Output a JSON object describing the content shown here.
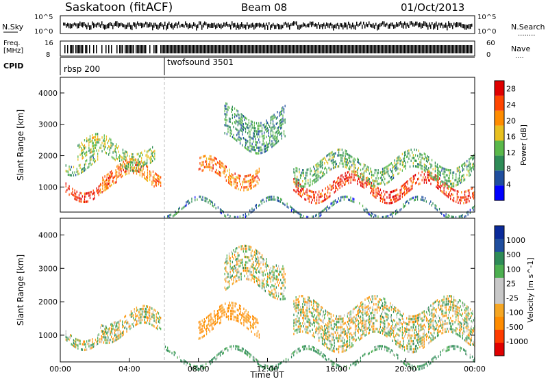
{
  "header": {
    "station": "Saskatoon (fitACF)",
    "beam": "Beam 08",
    "date": "01/Oct/2013"
  },
  "noise_panel": {
    "left_label": "N.Sky",
    "right_label": "N.Search",
    "right_marker": "........",
    "y_ticks": [
      "10^5",
      "10^0"
    ],
    "y_ticks_right": [
      "10^5",
      "10^0"
    ]
  },
  "freq_panel": {
    "left_label_1": "Freq.",
    "left_label_2": "[MHz]",
    "y_ticks": [
      "16",
      "8"
    ],
    "right_label": "Nave",
    "right_marker": "....",
    "y_ticks_right": [
      "60",
      "0"
    ]
  },
  "cpid_panel": {
    "label": "CPID",
    "segments": [
      {
        "name": "rbsp 200",
        "start_ut": 0,
        "end_ut": 6
      },
      {
        "name": "twofsound 3501",
        "start_ut": 6,
        "end_ut": 24
      }
    ]
  },
  "colors": {
    "power_scale": [
      "#0000ff",
      "#1f4e9e",
      "#2e8b57",
      "#5ab84a",
      "#e8c020",
      "#ff8c00",
      "#ff4500",
      "#e00000"
    ],
    "velocity_scale": [
      "#e00000",
      "#ff3c00",
      "#ff8c00",
      "#f5a623",
      "#c8c8c8",
      "#c8c8c8",
      "#4caf50",
      "#2e8b57",
      "#1f4e9e",
      "#0a2a9a"
    ],
    "ground_scatter": "#c0c0c0"
  },
  "chart_data": [
    {
      "type": "heatmap",
      "name": "power",
      "xlabel": "",
      "ylabel": "Slant Range [km]",
      "xlim": [
        0,
        24
      ],
      "ylim": [
        200,
        4500
      ],
      "y_ticks": [
        1000,
        2000,
        3000,
        4000
      ],
      "colorbar_label": "Power [dB]",
      "colorbar_ticks": [
        4,
        8,
        12,
        16,
        20,
        24,
        28
      ],
      "colorbar_range": [
        0,
        30
      ],
      "scatter_bands": [
        {
          "t0": 0.3,
          "t1": 3.3,
          "r0": 850,
          "r1": 1150,
          "p": 26
        },
        {
          "t0": 0.3,
          "t1": 2.2,
          "r0": 1700,
          "r1": 2000,
          "p": 12
        },
        {
          "t0": 2.3,
          "t1": 5.8,
          "r0": 1100,
          "r1": 1600,
          "p": 22
        },
        {
          "t0": 1.0,
          "t1": 5.5,
          "r0": 1800,
          "r1": 2400,
          "p": 14
        },
        {
          "t0": 8.0,
          "t1": 11.5,
          "r0": 1200,
          "r1": 1700,
          "p": 22
        },
        {
          "t0": 9.5,
          "t1": 13.0,
          "r0": 2400,
          "r1": 3400,
          "p": 10
        },
        {
          "t0": 13.5,
          "t1": 24.0,
          "r0": 800,
          "r1": 1200,
          "p": 26
        },
        {
          "t0": 13.5,
          "t1": 24.0,
          "r0": 1300,
          "r1": 1900,
          "p": 12
        },
        {
          "t0": 6.0,
          "t1": 24.0,
          "r0": 250,
          "r1": 400,
          "p": 8
        }
      ]
    },
    {
      "type": "heatmap",
      "name": "velocity",
      "xlabel": "Time UT",
      "ylabel": "Slant Range [km]",
      "xlim": [
        0,
        24
      ],
      "ylim": [
        200,
        4500
      ],
      "x_ticks": [
        "00:00",
        "04:00",
        "08:00",
        "12:00",
        "16:00",
        "20:00",
        "00:00"
      ],
      "y_ticks": [
        1000,
        2000,
        3000,
        4000
      ],
      "colorbar_label": "Velocity [m s^-1]",
      "colorbar_ticks": [
        "1000",
        "500",
        "100",
        "25",
        "-25",
        "-100",
        "-500",
        "-1000"
      ],
      "scatter_bands": [
        {
          "t0": 0.3,
          "t1": 3.3,
          "r0": 850,
          "r1": 1150,
          "v": 0
        },
        {
          "t0": 2.3,
          "t1": 5.8,
          "r0": 1100,
          "r1": 1600,
          "v": 0
        },
        {
          "t0": 8.0,
          "t1": 11.5,
          "r0": 1200,
          "r1": 1700,
          "v": -200
        },
        {
          "t0": 9.5,
          "t1": 13.0,
          "r0": 2400,
          "r1": 3400,
          "v": 0
        },
        {
          "t0": 13.5,
          "t1": 24.0,
          "r0": 800,
          "r1": 1900,
          "v": 0
        },
        {
          "t0": 6.0,
          "t1": 24.0,
          "r0": 250,
          "r1": 400,
          "v": 150
        }
      ]
    }
  ]
}
